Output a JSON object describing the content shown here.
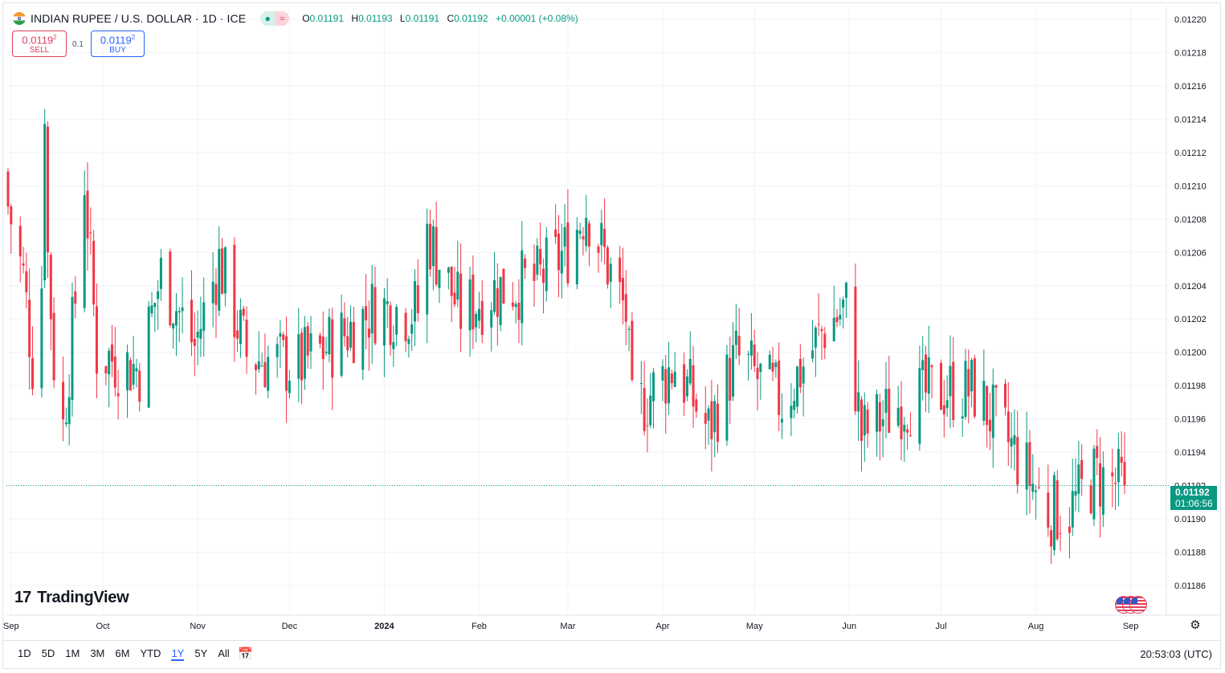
{
  "symbol": {
    "title": "INDIAN RUPEE / U.S. DOLLAR · 1D · ICE",
    "pill_left": "●",
    "pill_right": "≈",
    "ohlc": {
      "o_label": "O",
      "o": "0.01191",
      "h_label": "H",
      "h": "0.01193",
      "l_label": "L",
      "l": "0.01191",
      "c_label": "C",
      "c": "0.01192",
      "change": "+0.00001 (+0.08%)"
    }
  },
  "trade": {
    "sell_price": "0.0119",
    "sell_sup": "2",
    "sell_label": "SELL",
    "buy_price": "0.0119",
    "buy_sup": "2",
    "buy_label": "BUY",
    "spread": "0.1"
  },
  "last_price": {
    "value": "0.01192",
    "countdown": "01:06:56"
  },
  "brand": {
    "name": "TradingView",
    "mark": "17"
  },
  "ranges": [
    "1D",
    "5D",
    "1M",
    "3M",
    "6M",
    "YTD",
    "1Y",
    "5Y",
    "All"
  ],
  "active_range": "1Y",
  "clock": "20:53:03 (UTC)",
  "colors": {
    "up": "#089981",
    "down": "#f23645",
    "grid": "#f0f3fa",
    "accent": "#2962ff"
  },
  "icons": {
    "calendar": "calendar-goto-icon",
    "settings": "gear-icon",
    "events": "us-flag-events-icon"
  },
  "chart_data": {
    "type": "candlestick",
    "title": "INDIAN RUPEE / U.S. DOLLAR · 1D · ICE",
    "y_ticks": [
      "0.01220",
      "0.01218",
      "0.01216",
      "0.01214",
      "0.01212",
      "0.01210",
      "0.01208",
      "0.01206",
      "0.01204",
      "0.01202",
      "0.01200",
      "0.01198",
      "0.01196",
      "0.01194",
      "0.01192",
      "0.01190",
      "0.01188",
      "0.01186"
    ],
    "ylim": [
      0.011853,
      0.01221
    ],
    "x_labels": [
      "Sep",
      "Oct",
      "Nov",
      "Dec",
      "2024",
      "Feb",
      "Mar",
      "Apr",
      "May",
      "Jun",
      "Jul",
      "Aug",
      "Sep"
    ],
    "x_label_bold": "2024",
    "x_range": [
      "2023-08-31",
      "2024-08-30"
    ],
    "grid": true,
    "last_close": 0.01192,
    "anchors": [
      {
        "date": "2023-08-31",
        "close": 0.012088
      },
      {
        "date": "2023-09-05",
        "close": 0.012045
      },
      {
        "date": "2023-09-08",
        "close": 0.011995
      },
      {
        "date": "2023-09-11",
        "close": 0.012042
      },
      {
        "date": "2023-09-12",
        "close": 0.012152
      },
      {
        "date": "2023-09-13",
        "close": 0.012058
      },
      {
        "date": "2023-09-15",
        "close": 0.011995
      },
      {
        "date": "2023-09-18",
        "close": 0.011955
      },
      {
        "date": "2023-09-22",
        "close": 0.012032
      },
      {
        "date": "2023-09-25",
        "close": 0.012105
      },
      {
        "date": "2023-09-29",
        "close": 0.012
      },
      {
        "date": "2023-10-13",
        "close": 0.01199
      },
      {
        "date": "2023-10-20",
        "close": 0.012047
      },
      {
        "date": "2023-10-31",
        "close": 0.012004
      },
      {
        "date": "2023-11-08",
        "close": 0.012055
      },
      {
        "date": "2023-11-17",
        "close": 0.011998
      },
      {
        "date": "2023-12-04",
        "close": 0.011992
      },
      {
        "date": "2023-12-15",
        "close": 0.012005
      },
      {
        "date": "2023-12-29",
        "close": 0.012027
      },
      {
        "date": "2024-01-12",
        "close": 0.012025
      },
      {
        "date": "2024-01-15",
        "close": 0.012072
      },
      {
        "date": "2024-01-26",
        "close": 0.012023
      },
      {
        "date": "2024-02-05",
        "close": 0.012037
      },
      {
        "date": "2024-02-20",
        "close": 0.012043
      },
      {
        "date": "2024-03-01",
        "close": 0.012062
      },
      {
        "date": "2024-03-07",
        "close": 0.012088
      },
      {
        "date": "2024-03-15",
        "close": 0.012047
      },
      {
        "date": "2024-03-20",
        "close": 0.012023
      },
      {
        "date": "2024-03-22",
        "close": 0.011962
      },
      {
        "date": "2024-04-05",
        "close": 0.011993
      },
      {
        "date": "2024-04-16",
        "close": 0.011953
      },
      {
        "date": "2024-04-25",
        "close": 0.011997
      },
      {
        "date": "2024-05-10",
        "close": 0.01197
      },
      {
        "date": "2024-05-24",
        "close": 0.012015
      },
      {
        "date": "2024-05-31",
        "close": 0.012027
      },
      {
        "date": "2024-06-05",
        "close": 0.01195
      },
      {
        "date": "2024-06-18",
        "close": 0.01197
      },
      {
        "date": "2024-07-03",
        "close": 0.011978
      },
      {
        "date": "2024-07-12",
        "close": 0.011977
      },
      {
        "date": "2024-07-26",
        "close": 0.011937
      },
      {
        "date": "2024-08-05",
        "close": 0.011905
      },
      {
        "date": "2024-08-12",
        "close": 0.011905
      },
      {
        "date": "2024-08-20",
        "close": 0.011925
      },
      {
        "date": "2024-08-30",
        "close": 0.01192
      }
    ]
  }
}
